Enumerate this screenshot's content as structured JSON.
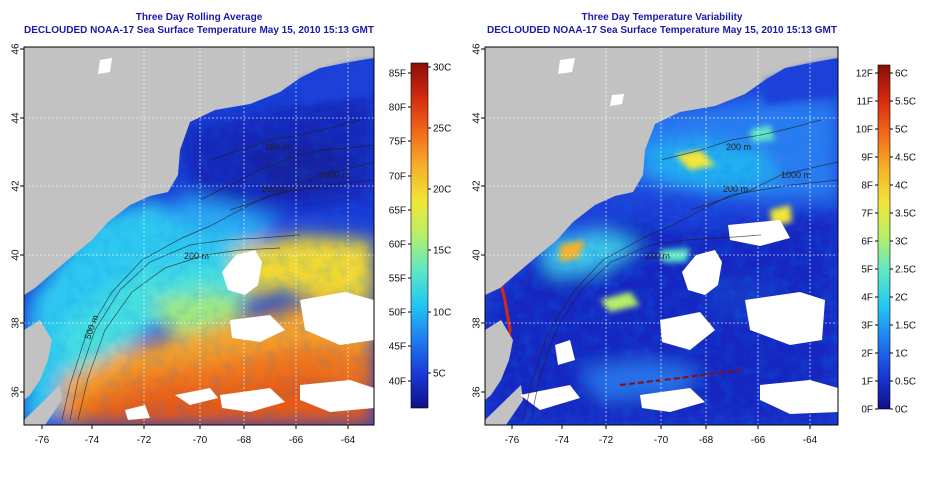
{
  "maps": [
    {
      "id": "left",
      "title_line1": "Three Day Rolling Average",
      "title_line2": "DECLOUDED NOAA-17 Sea Surface Temperature May 15, 2010 15:13 GMT",
      "x_ticks": [
        "-76",
        "-74",
        "-72",
        "-70",
        "-68",
        "-66",
        "-64"
      ],
      "y_ticks": [
        "46",
        "44",
        "42",
        "40",
        "38",
        "36"
      ],
      "colorbar": {
        "left_labels": [
          "85F",
          "80F",
          "75F",
          "70F",
          "65F",
          "60F",
          "55F",
          "50F",
          "45F",
          "40F"
        ],
        "right_labels": [
          "30C",
          "25C",
          "20C",
          "15C",
          "10C",
          "5C"
        ],
        "colors": [
          "#10108a",
          "#1a3ad6",
          "#1e7ef0",
          "#22c7f0",
          "#5fe7c6",
          "#b6ef6a",
          "#f2e638",
          "#f6b02a",
          "#f06a1a",
          "#d42a10",
          "#8a0e08"
        ]
      },
      "contour_labels": [
        "200 m",
        "200 m",
        "500 m",
        "1000 m",
        "200 m"
      ]
    },
    {
      "id": "right",
      "title_line1": "Three Day Temperature Variability",
      "title_line2": "DECLOUDED NOAA-17 Sea Surface Temperature May 15, 2010 15:13 GMT",
      "x_ticks": [
        "-76",
        "-74",
        "-72",
        "-70",
        "-68",
        "-66",
        "-64"
      ],
      "y_ticks": [
        "46",
        "44",
        "42",
        "40",
        "38",
        "36"
      ],
      "colorbar": {
        "left_labels": [
          "12F",
          "11F",
          "10F",
          "9F",
          "8F",
          "7F",
          "6F",
          "5F",
          "4F",
          "3F",
          "2F",
          "1F",
          "0F"
        ],
        "right_labels": [
          "6C",
          "5.5C",
          "5C",
          "4.5C",
          "4C",
          "3.5C",
          "3C",
          "2.5C",
          "2C",
          "1.5C",
          "1C",
          "0.5C",
          "0C"
        ],
        "colors": [
          "#10108a",
          "#1a3ad6",
          "#1e7ef0",
          "#22c7f0",
          "#5fe7c6",
          "#b6ef6a",
          "#f2e638",
          "#f6b02a",
          "#f06a1a",
          "#d42a10",
          "#8a0e08"
        ]
      },
      "contour_labels": [
        "200 m",
        "200 m",
        "1000 m",
        "200 m"
      ]
    }
  ]
}
